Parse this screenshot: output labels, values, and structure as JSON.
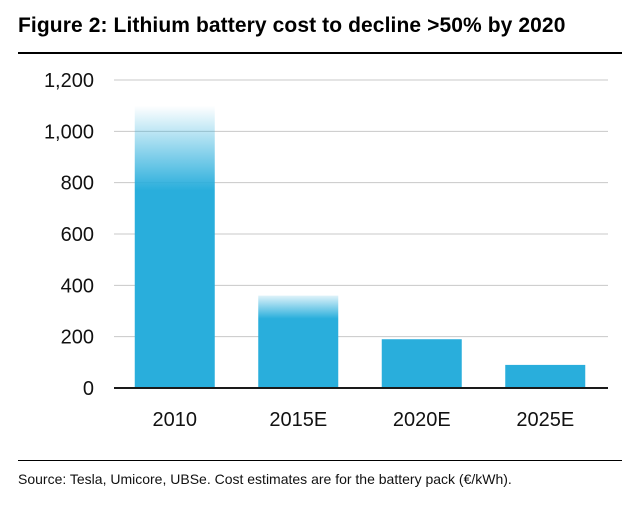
{
  "chart_data": {
    "type": "bar",
    "title": "Figure 2: Lithium battery cost to decline >50% by 2020",
    "categories": [
      "2010",
      "2015E",
      "2020E",
      "2025E"
    ],
    "values": [
      1100,
      360,
      190,
      90
    ],
    "ylim": [
      0,
      1200
    ],
    "yticks": [
      0,
      200,
      400,
      600,
      800,
      1000,
      1200
    ],
    "ytick_labels": [
      "0",
      "200",
      "400",
      "600",
      "800",
      "1,000",
      "1,200"
    ],
    "xlabel": "",
    "ylabel": "",
    "grid": true,
    "bar_color": "#29aedc",
    "gridline_color": "#c8c8c8",
    "source": "Source:  Tesla, Umicore, UBSe. Cost estimates are for the battery pack (€/kWh)."
  }
}
